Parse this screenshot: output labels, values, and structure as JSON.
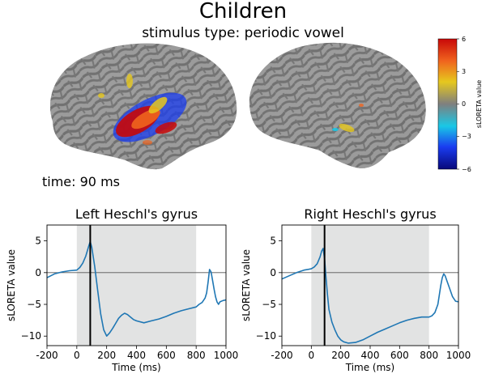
{
  "figure": {
    "title": "Children",
    "subtitle": "stimulus type: periodic vowel",
    "time_label": "time: 90 ms",
    "colorbar": {
      "label": "sLORETA value",
      "ticks": [
        "6",
        "3",
        "0",
        "−3",
        "−6"
      ],
      "range": [
        -6,
        6
      ],
      "colors": [
        "#08087a",
        "#1a3cf0",
        "#19c8e6",
        "#7f7f7f",
        "#e6c81e",
        "#f0641e",
        "#c80808"
      ]
    },
    "brains": [
      {
        "name": "left-hemisphere-brain"
      },
      {
        "name": "right-hemisphere-brain"
      }
    ]
  },
  "chart_data": [
    {
      "type": "line",
      "title": "Left Heschl's gyrus",
      "xlabel": "Time (ms)",
      "ylabel": "sLORETA value",
      "xlim": [
        -200,
        1000
      ],
      "ylim": [
        -11.5,
        7.5
      ],
      "xticks": [
        -200,
        0,
        200,
        400,
        600,
        800,
        1000
      ],
      "yticks": [
        5,
        0,
        -5,
        -10
      ],
      "xtick_labels": [
        "-200",
        "0",
        "200",
        "400",
        "600",
        "800",
        "1000"
      ],
      "ytick_labels": [
        "5",
        "0",
        "−5",
        "−10"
      ],
      "shaded_window": [
        0,
        800
      ],
      "time_marker": 90,
      "zero_line": 0,
      "series": [
        {
          "name": "sLORETA",
          "color": "#1f77b4",
          "x": [
            -200,
            -150,
            -100,
            -50,
            0,
            20,
            40,
            60,
            80,
            90,
            100,
            120,
            140,
            160,
            180,
            200,
            220,
            240,
            260,
            280,
            300,
            320,
            340,
            360,
            380,
            400,
            450,
            500,
            550,
            600,
            650,
            700,
            750,
            800,
            820,
            840,
            860,
            870,
            880,
            890,
            900,
            910,
            920,
            930,
            940,
            950,
            960,
            980,
            1000
          ],
          "y": [
            -0.8,
            -0.2,
            0.1,
            0.3,
            0.4,
            0.8,
            1.5,
            2.6,
            4.2,
            4.9,
            4.0,
            1.0,
            -2.8,
            -6.5,
            -9.0,
            -10.0,
            -9.5,
            -8.8,
            -8.0,
            -7.2,
            -6.7,
            -6.4,
            -6.6,
            -7.0,
            -7.4,
            -7.6,
            -7.9,
            -7.6,
            -7.3,
            -6.9,
            -6.4,
            -6.0,
            -5.7,
            -5.4,
            -5.0,
            -4.7,
            -4.0,
            -3.2,
            -1.5,
            0.5,
            0.1,
            -1.2,
            -2.6,
            -3.8,
            -4.6,
            -5.0,
            -4.6,
            -4.4,
            -4.3
          ]
        }
      ]
    },
    {
      "type": "line",
      "title": "Right Heschl's gyrus",
      "xlabel": "Time (ms)",
      "ylabel": "sLORETA value",
      "xlim": [
        -200,
        1000
      ],
      "ylim": [
        -11.5,
        7.5
      ],
      "xticks": [
        -200,
        0,
        200,
        400,
        600,
        800,
        1000
      ],
      "yticks": [
        5,
        0,
        -5,
        -10
      ],
      "xtick_labels": [
        "-200",
        "0",
        "200",
        "400",
        "600",
        "800",
        "1000"
      ],
      "ytick_labels": [
        "5",
        "0",
        "−5",
        "−10"
      ],
      "shaded_window": [
        0,
        800
      ],
      "time_marker": 90,
      "zero_line": 0,
      "series": [
        {
          "name": "sLORETA",
          "color": "#1f77b4",
          "x": [
            -200,
            -150,
            -100,
            -50,
            0,
            20,
            40,
            60,
            70,
            80,
            90,
            100,
            110,
            120,
            140,
            160,
            180,
            200,
            220,
            250,
            300,
            350,
            400,
            450,
            500,
            550,
            600,
            650,
            700,
            750,
            800,
            820,
            840,
            860,
            870,
            880,
            890,
            900,
            910,
            920,
            940,
            960,
            980,
            1000
          ],
          "y": [
            -1.0,
            -0.5,
            0.0,
            0.4,
            0.6,
            0.9,
            1.4,
            2.5,
            3.4,
            3.8,
            2.2,
            -0.8,
            -3.5,
            -5.8,
            -7.8,
            -9.0,
            -10.0,
            -10.6,
            -10.9,
            -11.1,
            -11.0,
            -10.6,
            -10.0,
            -9.4,
            -8.9,
            -8.4,
            -7.9,
            -7.5,
            -7.2,
            -7.0,
            -7.0,
            -6.8,
            -6.3,
            -5.0,
            -3.5,
            -2.0,
            -0.8,
            -0.2,
            -0.5,
            -1.2,
            -2.5,
            -3.8,
            -4.5,
            -4.6
          ]
        }
      ]
    }
  ]
}
